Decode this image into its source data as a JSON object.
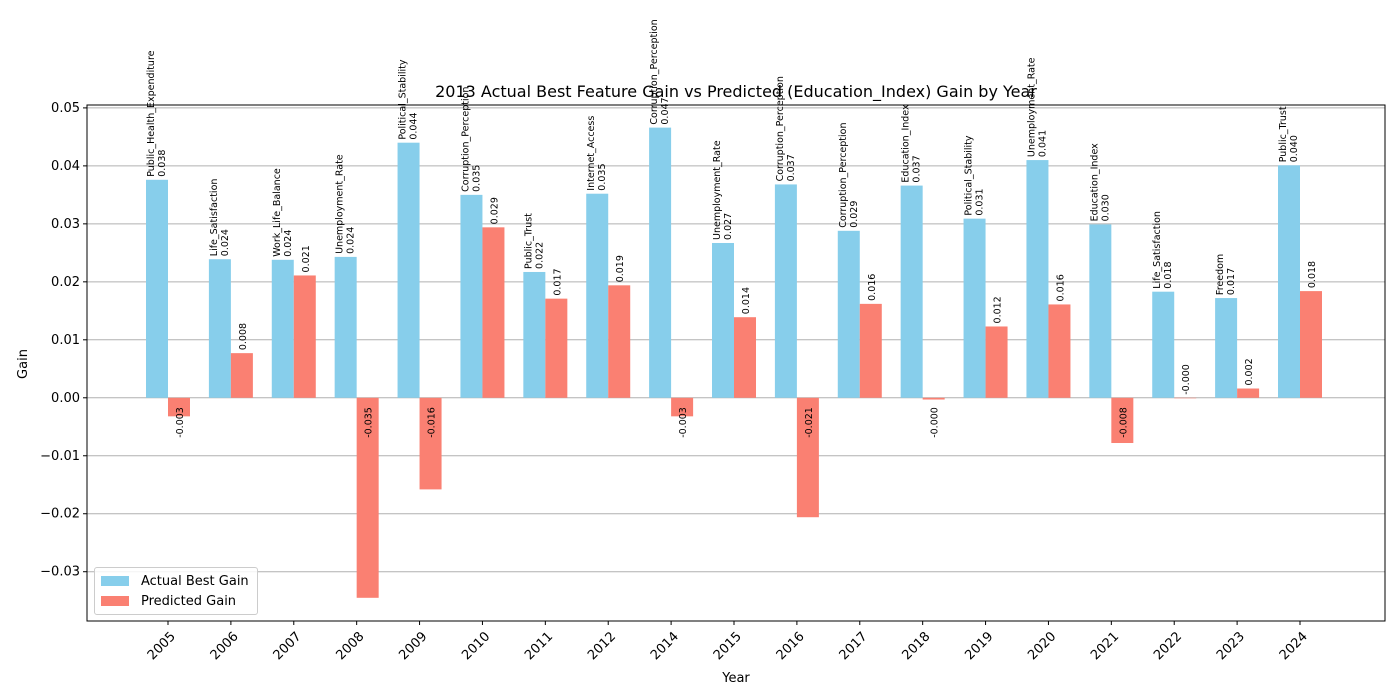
{
  "chart_data": {
    "type": "bar",
    "title": "2013 Actual Best Feature Gain vs Predicted (Education_Index) Gain by Year",
    "xlabel": "Year",
    "ylabel": "Gain",
    "ylim": [
      -0.0385,
      0.0505
    ],
    "yticks": [
      "0.05",
      "0.04",
      "0.03",
      "0.02",
      "0.01",
      "0.00",
      "−0.01",
      "−0.02",
      "−0.03"
    ],
    "grid": "horizontal",
    "legend_position": "lower-left",
    "categories": [
      "2005",
      "2006",
      "2007",
      "2008",
      "2009",
      "2010",
      "2011",
      "2012",
      "2014",
      "2015",
      "2016",
      "2017",
      "2018",
      "2019",
      "2020",
      "2021",
      "2022",
      "2023",
      "2024"
    ],
    "series": [
      {
        "name": "Actual Best Gain",
        "color": "#87ceeb",
        "values": [
          0.0376,
          0.0239,
          0.0238,
          0.0243,
          0.044,
          0.035,
          0.0217,
          0.0352,
          0.0466,
          0.0267,
          0.0368,
          0.0288,
          0.0366,
          0.0309,
          0.041,
          0.0299,
          0.0183,
          0.0172,
          0.0401
        ],
        "value_labels": [
          "0.038",
          "0.024",
          "0.024",
          "0.024",
          "0.044",
          "0.035",
          "0.022",
          "0.035",
          "0.047",
          "0.027",
          "0.037",
          "0.029",
          "0.037",
          "0.031",
          "0.041",
          "0.030",
          "0.018",
          "0.017",
          "0.040"
        ],
        "feature_labels": [
          "Public_Health_Expenditure",
          "Life_Satisfaction",
          "Work_Life_Balance",
          "Unemployment_Rate",
          "Political_Stability",
          "Corruption_Perception",
          "Public_Trust",
          "Internet_Access",
          "Corruption_Perception",
          "Unemployment_Rate",
          "Corruption_Perception",
          "Corruption_Perception",
          "Education_Index",
          "Political_Stability",
          "Unemployment_Rate",
          "Education_Index",
          "Life_Satisfaction",
          "Freedom",
          "Public_Trust"
        ]
      },
      {
        "name": "Predicted Gain",
        "color": "#fa8072",
        "values": [
          -0.0032,
          0.0077,
          0.0211,
          -0.0345,
          -0.0158,
          0.0294,
          0.0171,
          0.0194,
          -0.0032,
          0.0139,
          -0.0206,
          0.0162,
          -0.0003,
          0.0123,
          0.0161,
          -0.0078,
          0.0,
          0.0016,
          0.0184
        ],
        "value_labels": [
          "-0.003",
          "0.008",
          "0.021",
          "-0.035",
          "-0.016",
          "0.029",
          "0.017",
          "0.019",
          "-0.003",
          "0.014",
          "-0.021",
          "0.016",
          "-0.000",
          "0.012",
          "0.016",
          "-0.008",
          "-0.000",
          "0.002",
          "0.018"
        ]
      }
    ]
  }
}
